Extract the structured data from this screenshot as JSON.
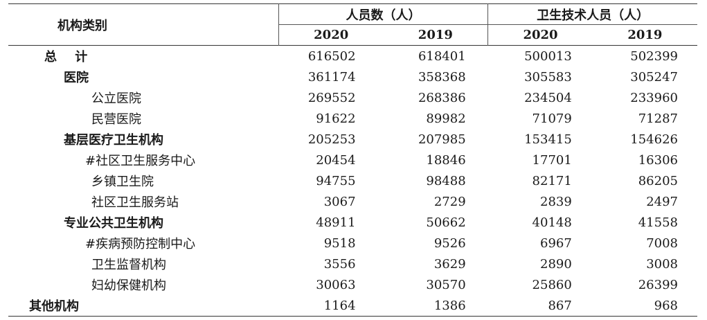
{
  "header": {
    "category": "机构类别",
    "group1": "人员数（人）",
    "group2": "卫生技术人员（人）",
    "years": [
      "2020",
      "2019",
      "2020",
      "2019"
    ]
  },
  "rows": [
    {
      "label": "总 计",
      "level": "lv0",
      "values": [
        "616502",
        "618401",
        "500013",
        "502399"
      ]
    },
    {
      "label": "医院",
      "level": "lv1",
      "values": [
        "361174",
        "358368",
        "305583",
        "305247"
      ]
    },
    {
      "label": "公立医院",
      "level": "lv2",
      "values": [
        "269552",
        "268386",
        "234504",
        "233960"
      ]
    },
    {
      "label": "民营医院",
      "level": "lv2",
      "values": [
        "91622",
        "89982",
        "71079",
        "71287"
      ]
    },
    {
      "label": "基层医疗卫生机构",
      "level": "lv1",
      "values": [
        "205253",
        "207985",
        "153415",
        "154626"
      ]
    },
    {
      "label": "#社区卫生服务中心",
      "level": "lv2h",
      "values": [
        "20454",
        "18846",
        "17701",
        "16306"
      ]
    },
    {
      "label": "乡镇卫生院",
      "level": "lv2",
      "values": [
        "94755",
        "98488",
        "82171",
        "86205"
      ]
    },
    {
      "label": "社区卫生服务站",
      "level": "lv2",
      "values": [
        "3067",
        "2729",
        "2839",
        "2497"
      ]
    },
    {
      "label": "专业公共卫生机构",
      "level": "lv1",
      "values": [
        "48911",
        "50662",
        "40148",
        "41558"
      ]
    },
    {
      "label": "#疾病预防控制中心",
      "level": "lv2h",
      "values": [
        "9518",
        "9526",
        "6967",
        "7008"
      ]
    },
    {
      "label": "卫生监督机构",
      "level": "lv2",
      "values": [
        "3556",
        "3629",
        "2890",
        "3008"
      ]
    },
    {
      "label": "妇幼保健机构",
      "level": "lv2",
      "values": [
        "30063",
        "30570",
        "25860",
        "26399"
      ]
    },
    {
      "label": "其他机构",
      "level": "lv0b",
      "values": [
        "1164",
        "1386",
        "867",
        "968"
      ]
    }
  ]
}
